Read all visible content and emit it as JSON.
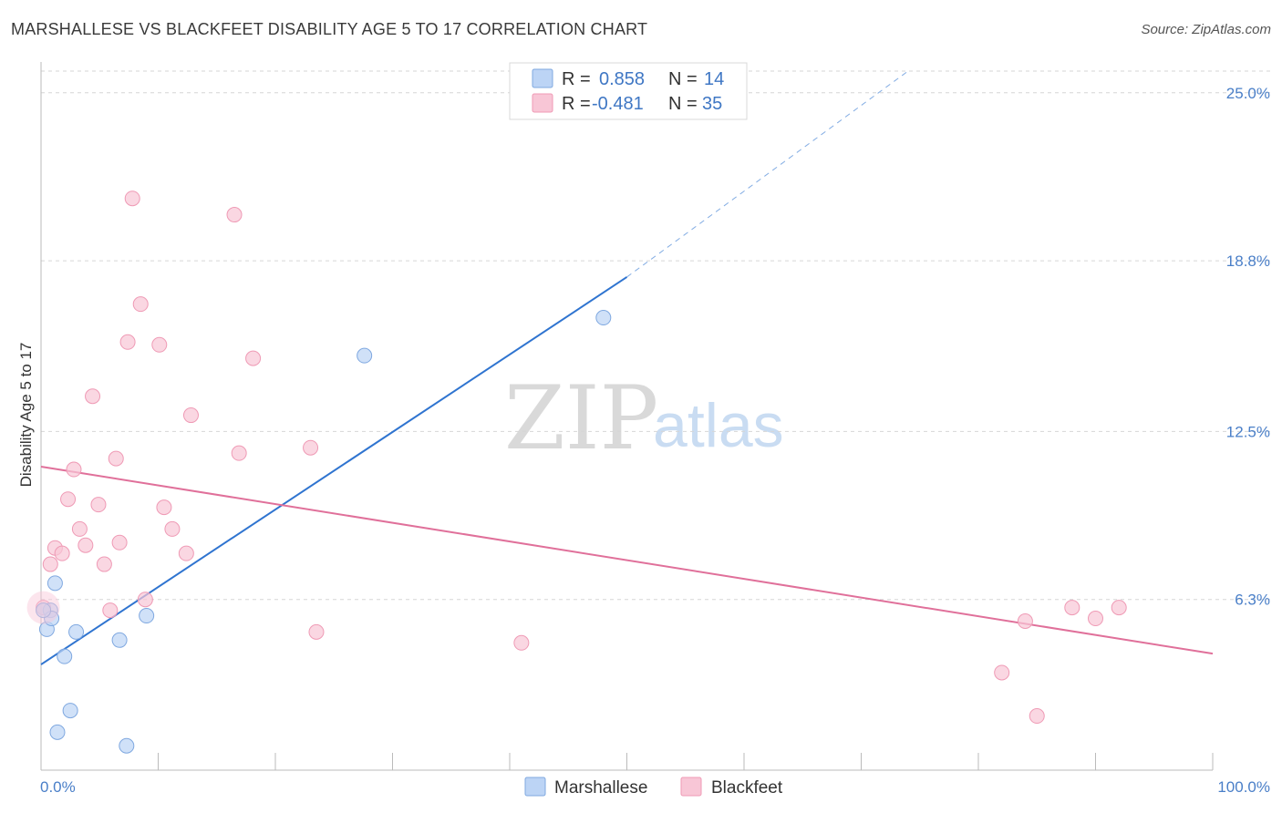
{
  "title": "MARSHALLESE VS BLACKFEET DISABILITY AGE 5 TO 17 CORRELATION CHART",
  "source": "Source: ZipAtlas.com",
  "watermark": {
    "zip": "ZIP",
    "atlas": "atlas"
  },
  "colors": {
    "marshallese_fill": "#bcd4f5",
    "marshallese_stroke": "#7fa8e0",
    "marshallese_line": "#2f74d0",
    "blackfeet_fill": "#f8c6d6",
    "blackfeet_stroke": "#ef9ab5",
    "blackfeet_line": "#e0709a",
    "grid": "#d6d6d6",
    "tick_text": "#4a7fc8"
  },
  "legend": {
    "rows": [
      {
        "r_label": "R =",
        "r_value": "0.858",
        "n_label": "N =",
        "n_value": "14"
      },
      {
        "r_label": "R =",
        "r_value": "-0.481",
        "n_label": "N =",
        "n_value": "35"
      }
    ]
  },
  "bottom_legend": {
    "series1": "Marshallese",
    "series2": "Blackfeet"
  },
  "chart_data": {
    "type": "scatter",
    "title": "MARSHALLESE VS BLACKFEET DISABILITY AGE 5 TO 17 CORRELATION CHART",
    "xlabel": "",
    "ylabel": "Disability Age 5 to 17",
    "xlim": [
      0,
      100
    ],
    "ylim": [
      0,
      25.8
    ],
    "x_tick_labels": [
      "0.0%",
      "100.0%"
    ],
    "y_ticks": [
      6.3,
      12.5,
      18.8,
      25.0
    ],
    "y_tick_labels": [
      "6.3%",
      "12.5%",
      "18.8%",
      "25.0%"
    ],
    "x_minor_ticks": [
      0,
      10,
      20,
      30,
      40,
      50,
      60,
      70,
      80,
      90,
      100
    ],
    "series": [
      {
        "name": "Marshallese",
        "r": 0.858,
        "n": 14,
        "points": [
          {
            "x": 0.5,
            "y": 5.2
          },
          {
            "x": 0.8,
            "y": 5.9
          },
          {
            "x": 0.9,
            "y": 5.6
          },
          {
            "x": 1.2,
            "y": 6.9
          },
          {
            "x": 1.4,
            "y": 1.4
          },
          {
            "x": 2.0,
            "y": 4.2
          },
          {
            "x": 2.5,
            "y": 2.2
          },
          {
            "x": 3.0,
            "y": 5.1
          },
          {
            "x": 6.7,
            "y": 4.8
          },
          {
            "x": 7.3,
            "y": 0.9
          },
          {
            "x": 9.0,
            "y": 5.7
          },
          {
            "x": 27.6,
            "y": 15.3
          },
          {
            "x": 48.0,
            "y": 16.7
          },
          {
            "x": 0.2,
            "y": 5.9
          }
        ],
        "trend": {
          "x0": 0,
          "y0": 3.9,
          "x1": 50,
          "y1": 18.2,
          "dashed_to_x": 74,
          "dashed_to_y": 25.8
        }
      },
      {
        "name": "Blackfeet",
        "r": -0.481,
        "n": 35,
        "points": [
          {
            "x": 0.2,
            "y": 6.0
          },
          {
            "x": 0.8,
            "y": 7.6
          },
          {
            "x": 1.2,
            "y": 8.2
          },
          {
            "x": 1.8,
            "y": 8.0
          },
          {
            "x": 2.3,
            "y": 10.0
          },
          {
            "x": 2.8,
            "y": 11.1
          },
          {
            "x": 3.3,
            "y": 8.9
          },
          {
            "x": 3.8,
            "y": 8.3
          },
          {
            "x": 4.4,
            "y": 13.8
          },
          {
            "x": 4.9,
            "y": 9.8
          },
          {
            "x": 5.4,
            "y": 7.6
          },
          {
            "x": 5.9,
            "y": 5.9
          },
          {
            "x": 6.4,
            "y": 11.5
          },
          {
            "x": 6.7,
            "y": 8.4
          },
          {
            "x": 7.4,
            "y": 15.8
          },
          {
            "x": 7.8,
            "y": 21.1
          },
          {
            "x": 8.5,
            "y": 17.2
          },
          {
            "x": 8.9,
            "y": 6.3
          },
          {
            "x": 10.1,
            "y": 15.7
          },
          {
            "x": 10.5,
            "y": 9.7
          },
          {
            "x": 11.2,
            "y": 8.9
          },
          {
            "x": 12.4,
            "y": 8.0
          },
          {
            "x": 12.8,
            "y": 13.1
          },
          {
            "x": 16.5,
            "y": 20.5
          },
          {
            "x": 16.9,
            "y": 11.7
          },
          {
            "x": 18.1,
            "y": 15.2
          },
          {
            "x": 23.0,
            "y": 11.9
          },
          {
            "x": 23.5,
            "y": 5.1
          },
          {
            "x": 41.0,
            "y": 4.7
          },
          {
            "x": 82.0,
            "y": 3.6
          },
          {
            "x": 84.0,
            "y": 5.5
          },
          {
            "x": 85.0,
            "y": 2.0
          },
          {
            "x": 88.0,
            "y": 6.0
          },
          {
            "x": 90.0,
            "y": 5.6
          },
          {
            "x": 92.0,
            "y": 6.0
          }
        ],
        "trend": {
          "x0": 0,
          "y0": 11.2,
          "x1": 100,
          "y1": 4.3
        }
      }
    ]
  }
}
